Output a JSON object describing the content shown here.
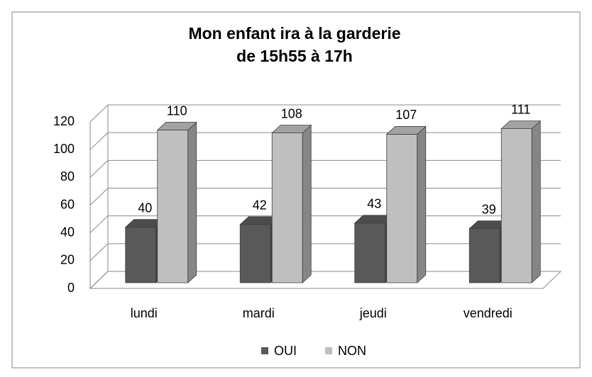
{
  "chart_data": {
    "type": "bar3d",
    "title": [
      "Mon enfant ira à la garderie",
      "de 15h55 à 17h"
    ],
    "categories": [
      "lundi",
      "mardi",
      "jeudi",
      "vendredi"
    ],
    "series": [
      {
        "name": "OUI",
        "color": "#595959",
        "values": [
          40,
          42,
          43,
          39
        ]
      },
      {
        "name": "NON",
        "color": "#bfbfbf",
        "values": [
          110,
          108,
          107,
          111
        ]
      }
    ],
    "ylim": [
      0,
      120
    ],
    "yticks": [
      0,
      20,
      40,
      60,
      80,
      100,
      120
    ],
    "grid": true,
    "legend": "bottom"
  }
}
